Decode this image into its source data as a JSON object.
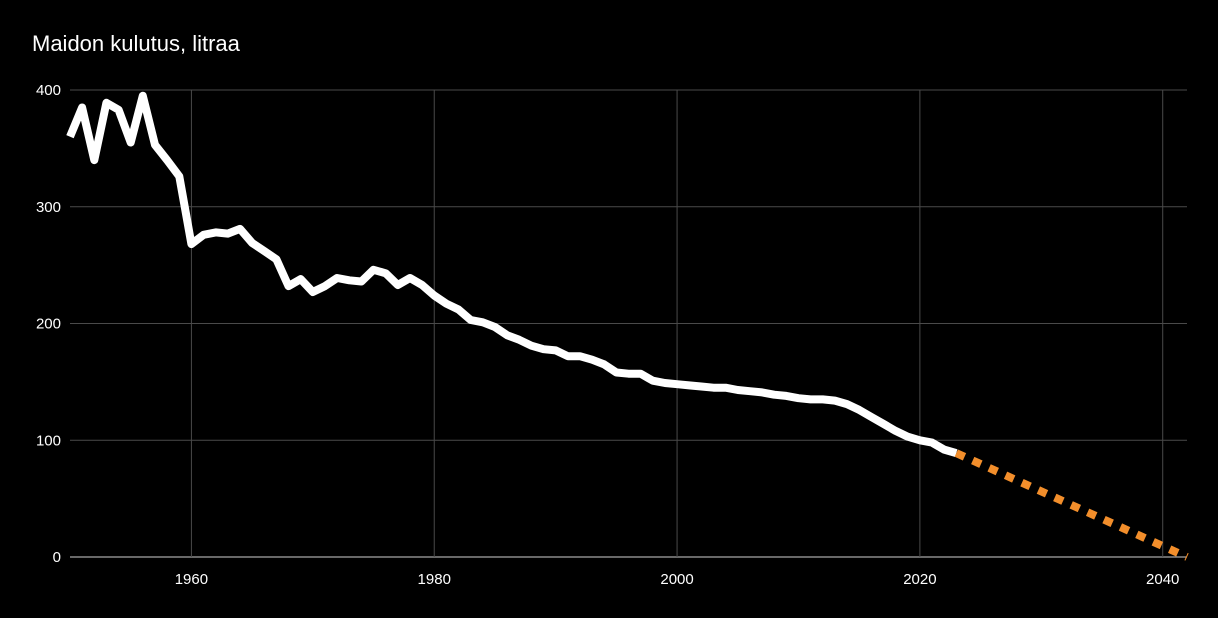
{
  "chart_data": {
    "type": "line",
    "title": "Maidon kulutus, litraa",
    "xlabel": "",
    "ylabel": "",
    "xlim": [
      1950,
      2042
    ],
    "ylim": [
      0,
      400
    ],
    "x_ticks": [
      1960,
      1980,
      2000,
      2020,
      2040
    ],
    "y_ticks": [
      0,
      100,
      200,
      300,
      400
    ],
    "grid": true,
    "legend": "none",
    "series": [
      {
        "style": "solid",
        "color": "#ffffff",
        "x": [
          1950,
          1951,
          1952,
          1953,
          1954,
          1955,
          1956,
          1957,
          1958,
          1959,
          1960,
          1961,
          1962,
          1963,
          1964,
          1965,
          1966,
          1967,
          1968,
          1969,
          1970,
          1971,
          1972,
          1973,
          1974,
          1975,
          1976,
          1977,
          1978,
          1979,
          1980,
          1981,
          1982,
          1983,
          1984,
          1985,
          1986,
          1987,
          1988,
          1989,
          1990,
          1991,
          1992,
          1993,
          1994,
          1995,
          1996,
          1997,
          1998,
          1999,
          2000,
          2001,
          2002,
          2003,
          2004,
          2005,
          2006,
          2007,
          2008,
          2009,
          2010,
          2011,
          2012,
          2013,
          2014,
          2015,
          2016,
          2017,
          2018,
          2019,
          2020,
          2021,
          2022,
          2023
        ],
        "values": [
          360,
          385,
          340,
          389,
          383,
          355,
          395,
          353,
          340,
          326,
          268,
          276,
          278,
          277,
          281,
          269,
          262,
          255,
          232,
          238,
          227,
          232,
          239,
          237,
          236,
          246,
          243,
          233,
          239,
          233,
          224,
          217,
          212,
          203,
          201,
          197,
          190,
          186,
          181,
          178,
          177,
          172,
          172,
          169,
          165,
          158,
          157,
          157,
          151,
          149,
          148,
          147,
          146,
          145,
          145,
          143,
          142,
          141,
          139,
          138,
          136,
          135,
          135,
          134,
          131,
          126,
          120,
          114,
          108,
          103,
          100,
          98,
          92,
          89
        ]
      },
      {
        "style": "dashed",
        "color": "#f28e2b",
        "x": [
          2023,
          2042
        ],
        "values": [
          89,
          0
        ]
      }
    ]
  }
}
